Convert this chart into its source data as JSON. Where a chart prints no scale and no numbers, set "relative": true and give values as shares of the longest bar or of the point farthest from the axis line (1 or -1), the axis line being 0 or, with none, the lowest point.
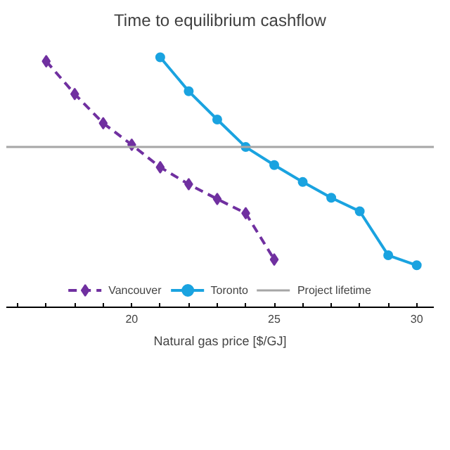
{
  "chart_data": {
    "type": "line",
    "title": "Time to equilibrium cashflow",
    "xlabel": "Natural gas price [$/GJ]",
    "relative": true,
    "xlim": [
      15.6,
      30.6
    ],
    "xticks": [
      {
        "value": 16,
        "label": null
      },
      {
        "value": 17,
        "label": null
      },
      {
        "value": 18,
        "label": null
      },
      {
        "value": 19,
        "label": null
      },
      20,
      {
        "value": 21,
        "label": null
      },
      {
        "value": 22,
        "label": null
      },
      {
        "value": 23,
        "label": null
      },
      {
        "value": 24,
        "label": null
      },
      25,
      {
        "value": 26,
        "label": null
      },
      {
        "value": 27,
        "label": null
      },
      {
        "value": 28,
        "label": null
      },
      {
        "value": 29,
        "label": null
      },
      30
    ],
    "tick_labels": "x",
    "legend": "bottom",
    "series": [
      {
        "name": "Vancouver",
        "color": "#7030a0",
        "marker": "diamond",
        "line_style": "dashed",
        "x": [
          17,
          18,
          19,
          20,
          21,
          22,
          23,
          24,
          25
        ],
        "values": [
          0.984,
          0.853,
          0.736,
          0.65,
          0.56,
          0.492,
          0.433,
          0.376,
          0.191
        ]
      },
      {
        "name": "Toronto",
        "color": "#1aa3e0",
        "marker": "circle",
        "line_style": "solid",
        "x": [
          21,
          22,
          23,
          24,
          25,
          26,
          27,
          28,
          29,
          30
        ],
        "values": [
          1.0,
          0.864,
          0.751,
          0.641,
          0.569,
          0.501,
          0.438,
          0.384,
          0.208,
          0.168
        ]
      }
    ],
    "ref_lines": [
      {
        "axis": "y",
        "value": 0.641,
        "label": "Project lifetime",
        "color": "#a6a6a6"
      }
    ]
  }
}
